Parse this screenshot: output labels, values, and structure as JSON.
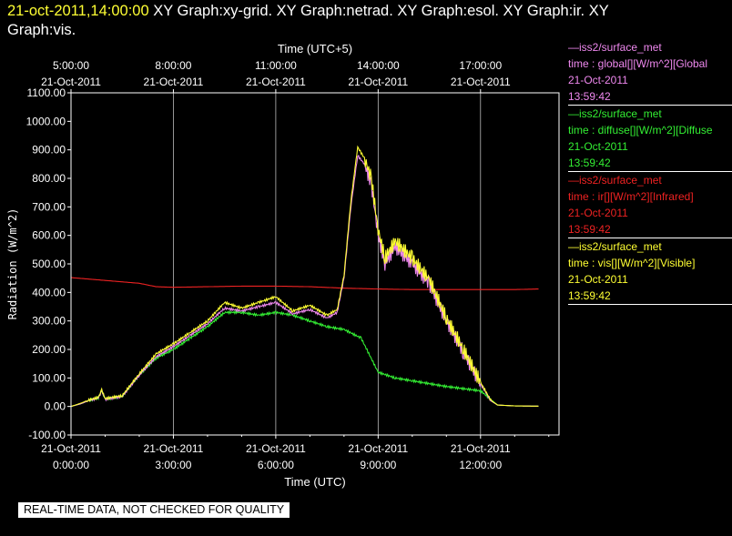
{
  "header": {
    "timestamp": "21-oct-2011,14:00:00",
    "graphs_line1": "XY Graph:xy-grid.  XY Graph:netrad.  XY Graph:esol.  XY Graph:ir.  XY",
    "graphs_line2": "Graph:vis."
  },
  "legend": [
    {
      "source": "—iss2/surface_met",
      "variable": "time : global[][W/m^2][Global",
      "date": "21-Oct-2011",
      "time": "13:59:42",
      "color": "#ee88ee"
    },
    {
      "source": "—iss2/surface_met",
      "variable": "time : diffuse[][W/m^2][Diffuse",
      "date": "21-Oct-2011",
      "time": "13:59:42",
      "color": "#33ee33"
    },
    {
      "source": "—iss2/surface_met",
      "variable": "time : ir[][W/m^2][Infrared]",
      "date": "21-Oct-2011",
      "time": "13:59:42",
      "color": "#ee2222"
    },
    {
      "source": "—iss2/surface_met",
      "variable": "time : vis[][W/m^2][Visible]",
      "date": "21-Oct-2011",
      "time": "13:59:42",
      "color": "#ffff33"
    }
  ],
  "footer": {
    "qc_notice": "REAL-TIME DATA, NOT CHECKED FOR QUALITY"
  },
  "chart_data": {
    "type": "line",
    "ylabel": "Radiation (W/m^2)",
    "xlabel_bottom": "Time (UTC)",
    "xlabel_top": "Time (UTC+5)",
    "ylim": [
      -100,
      1100
    ],
    "xlim_hours_utc": [
      0,
      14.3
    ],
    "grid": "vertical lines at 3-hour ticks",
    "y_ticks": [
      "1100.00",
      "1000.00",
      "900.00",
      "800.00",
      "700.00",
      "600.00",
      "500.00",
      "400.00",
      "300.00",
      "200.00",
      "100.00",
      "0.00",
      "-100.00"
    ],
    "bottom_ticks": [
      {
        "date": "21-Oct-2011",
        "time": "0:00:00"
      },
      {
        "date": "21-Oct-2011",
        "time": "3:00:00"
      },
      {
        "date": "21-Oct-2011",
        "time": "6:00:00"
      },
      {
        "date": "21-Oct-2011",
        "time": "9:00:00"
      },
      {
        "date": "21-Oct-2011",
        "time": "12:00:00"
      }
    ],
    "top_ticks": [
      {
        "time": "5:00:00",
        "date": "21-Oct-2011"
      },
      {
        "time": "8:00:00",
        "date": "21-Oct-2011"
      },
      {
        "time": "11:00:00",
        "date": "21-Oct-2011"
      },
      {
        "time": "14:00:00",
        "date": "21-Oct-2011"
      },
      {
        "time": "17:00:00",
        "date": "21-Oct-2011"
      }
    ],
    "series": [
      {
        "color": "#ee2222",
        "x": [
          0,
          1,
          2,
          2.5,
          3,
          4,
          5,
          6,
          7,
          8,
          9,
          10,
          11,
          12,
          13,
          13.7
        ],
        "y": [
          452,
          442,
          432,
          420,
          418,
          420,
          422,
          422,
          420,
          415,
          412,
          410,
          410,
          410,
          410,
          412
        ]
      },
      {
        "color": "#33ee33",
        "x": [
          0,
          0.3,
          0.5,
          0.8,
          0.9,
          1.0,
          1.5,
          2,
          2.5,
          3,
          3.5,
          4,
          4.5,
          5,
          5.5,
          6,
          6.5,
          7,
          7.5,
          8,
          8.5,
          9,
          9.5,
          10,
          11,
          12,
          12.5,
          13,
          13.7
        ],
        "y": [
          0,
          10,
          20,
          30,
          55,
          25,
          35,
          110,
          170,
          200,
          240,
          280,
          330,
          330,
          320,
          330,
          320,
          300,
          280,
          270,
          240,
          120,
          100,
          90,
          70,
          55,
          5,
          2,
          1
        ]
      },
      {
        "color": "#ee88ee",
        "x": [
          0,
          0.3,
          0.5,
          0.8,
          0.9,
          1.0,
          1.5,
          2,
          2.5,
          3,
          3.5,
          4,
          4.5,
          5,
          5.5,
          6,
          6.5,
          7,
          7.5,
          7.8,
          8,
          8.2,
          8.4,
          8.6,
          8.8,
          9.0,
          9.2,
          9.5,
          10,
          10.5,
          11,
          11.5,
          12,
          12.3,
          12.5,
          13,
          13.7
        ],
        "y": [
          0,
          10,
          20,
          30,
          55,
          25,
          35,
          110,
          175,
          210,
          250,
          290,
          345,
          335,
          350,
          365,
          325,
          340,
          310,
          330,
          450,
          700,
          880,
          850,
          780,
          600,
          500,
          560,
          500,
          430,
          300,
          190,
          80,
          20,
          5,
          2,
          1
        ]
      },
      {
        "color": "#ffff33",
        "x": [
          0,
          0.3,
          0.5,
          0.8,
          0.9,
          1.0,
          1.5,
          2,
          2.5,
          3,
          3.5,
          4,
          4.5,
          5,
          5.5,
          6,
          6.5,
          7,
          7.5,
          7.8,
          8,
          8.2,
          8.4,
          8.6,
          8.8,
          9.0,
          9.2,
          9.5,
          10,
          10.5,
          11,
          11.5,
          12,
          12.3,
          12.5,
          13,
          13.7
        ],
        "y": [
          0,
          12,
          22,
          32,
          58,
          28,
          38,
          115,
          185,
          220,
          260,
          300,
          365,
          345,
          365,
          385,
          335,
          355,
          320,
          340,
          460,
          720,
          910,
          870,
          800,
          620,
          520,
          580,
          520,
          445,
          310,
          200,
          85,
          22,
          5,
          2,
          1
        ]
      }
    ]
  }
}
